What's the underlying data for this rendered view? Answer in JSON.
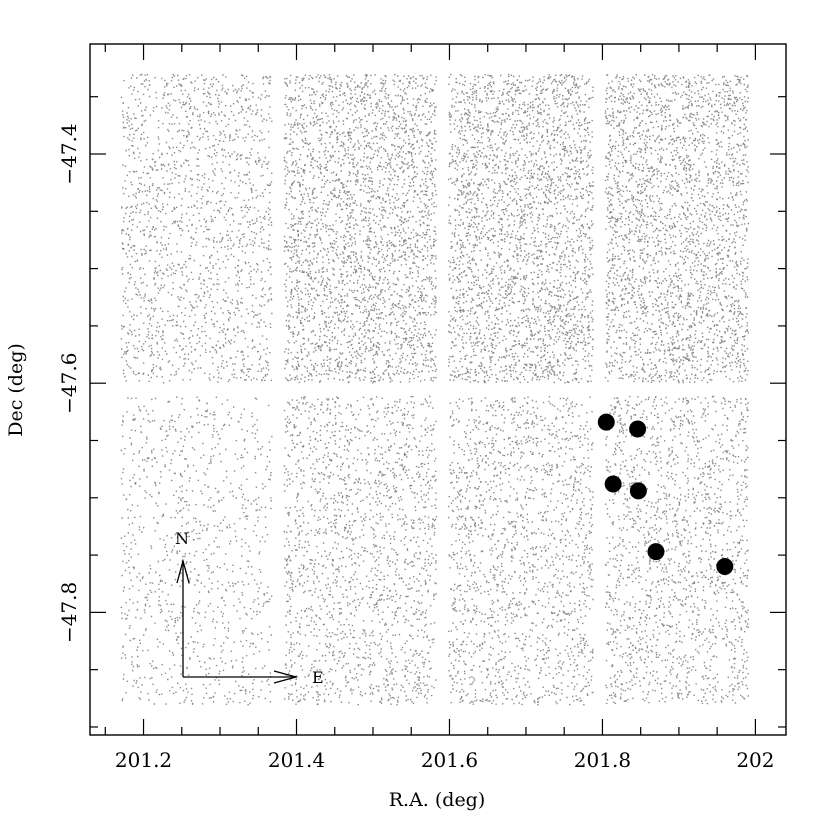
{
  "chart_data": {
    "type": "scatter",
    "xlabel": "R.A. (deg)",
    "ylabel": "Dec (deg)",
    "xlim": [
      201.13,
      202.04
    ],
    "ylim": [
      -47.907,
      -47.304
    ],
    "x_ticks": [
      {
        "value": 201.2,
        "label": "201.2"
      },
      {
        "value": 201.4,
        "label": "201.4"
      },
      {
        "value": 201.6,
        "label": "201.6"
      },
      {
        "value": 201.8,
        "label": "201.8"
      },
      {
        "value": 202.0,
        "label": "202"
      }
    ],
    "y_ticks": [
      {
        "value": -47.4,
        "label": "−47.4"
      },
      {
        "value": -47.6,
        "label": "−47.6"
      },
      {
        "value": -47.8,
        "label": "−47.8"
      }
    ],
    "background_field": {
      "description": "dense field of small grey points (detected sources)",
      "color": "#8a8a8a",
      "ra_range": [
        201.17,
        201.99
      ],
      "dec_range": [
        -47.88,
        -47.33
      ],
      "chip_gaps_ra": [
        201.375,
        201.59,
        201.795
      ],
      "chip_gap_dec": -47.605
    },
    "series": [
      {
        "color": "#000000",
        "points": [
          {
            "x": 201.805,
            "y": -47.634
          },
          {
            "x": 201.846,
            "y": -47.64
          },
          {
            "x": 201.814,
            "y": -47.688
          },
          {
            "x": 201.847,
            "y": -47.694
          },
          {
            "x": 201.87,
            "y": -47.747
          },
          {
            "x": 201.96,
            "y": -47.76
          }
        ]
      }
    ],
    "compass": {
      "north_label": "N",
      "east_label": "E"
    },
    "grid": false,
    "legend": "none"
  }
}
